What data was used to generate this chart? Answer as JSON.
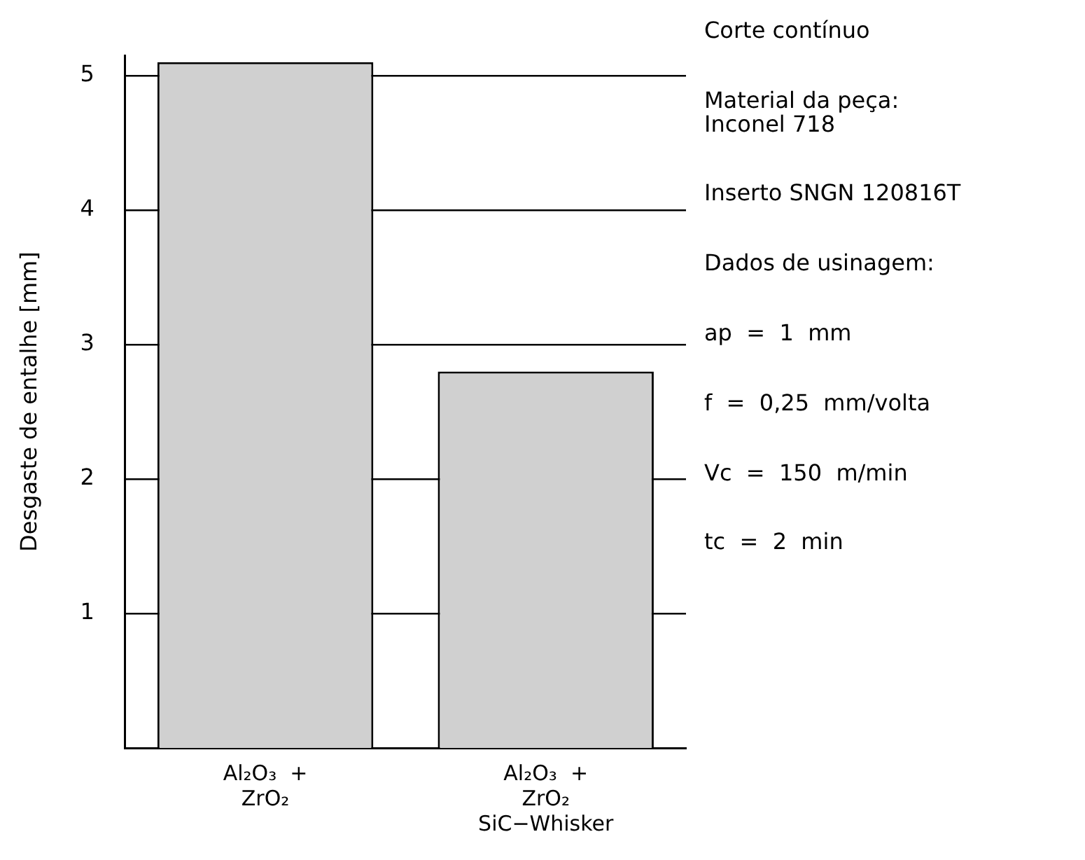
{
  "chart_data": {
    "type": "bar",
    "categories": [
      "Al₂O₃  +\nZrO₂",
      "Al₂O₃  +\nZrO₂\nSiC−Whisker"
    ],
    "values": [
      5.1,
      2.8
    ],
    "color": "#d0d0d0",
    "ylabel": "Desgaste de entalhe [mm]",
    "ylim": [
      0,
      5.15
    ],
    "yticks": [
      1,
      2,
      3,
      4,
      5
    ],
    "grid": "y",
    "annotations": [
      "Corte contínuo",
      "Material da peça:\nInconel 718",
      "Inserto SNGN 120816T",
      "Dados de usinagem:",
      "ap  =  1  mm",
      "f  =  0,25  mm/volta",
      "Vc  =  150  m/min",
      "tc  =  2  min"
    ]
  }
}
